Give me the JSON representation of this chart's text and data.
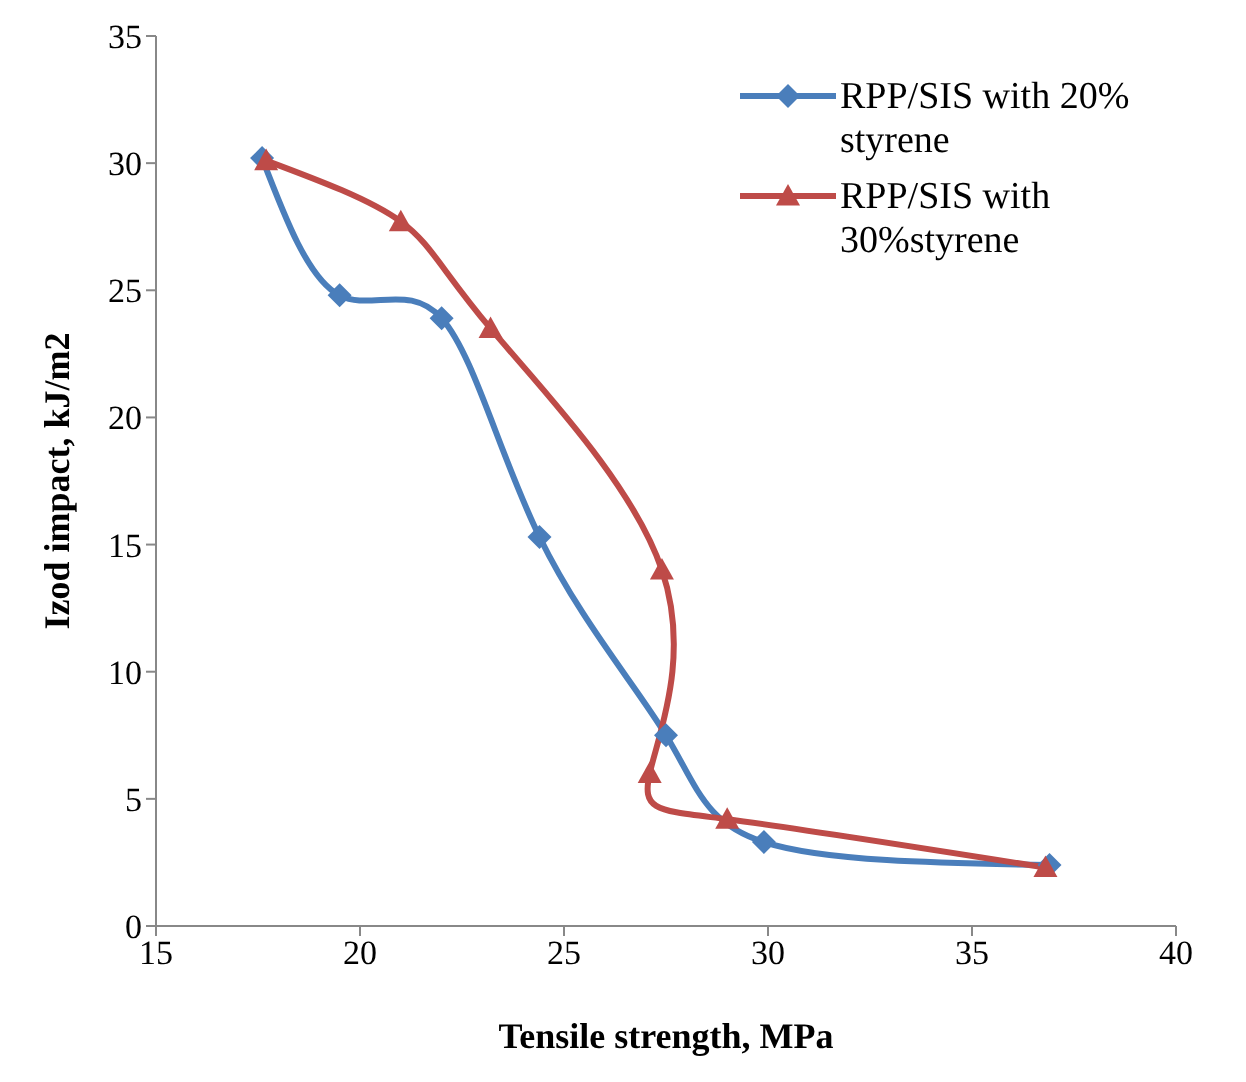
{
  "chart_data": {
    "type": "line",
    "xlabel": "Tensile strength, MPa",
    "ylabel": "Izod impact, kJ/m2",
    "xlim": [
      15,
      40
    ],
    "xticks": [
      15,
      20,
      25,
      30,
      35,
      40
    ],
    "ylim": [
      0,
      35
    ],
    "yticks": [
      0,
      5,
      10,
      15,
      20,
      25,
      30,
      35
    ],
    "legend": "top right",
    "series": [
      {
        "name": "RPP/SIS with 20% styrene",
        "color": "#4a7ebb",
        "marker": "diamond",
        "x": [
          17.6,
          19.5,
          22.0,
          24.4,
          27.5,
          29.9,
          36.9
        ],
        "values": [
          30.2,
          24.8,
          23.9,
          15.3,
          7.5,
          3.3,
          2.4
        ]
      },
      {
        "name": "RPP/SIS with 30%styrene",
        "color": "#be4b48",
        "marker": "triangle",
        "x": [
          17.7,
          21.0,
          23.2,
          27.4,
          27.1,
          29.0,
          36.8
        ],
        "values": [
          30.1,
          27.7,
          23.5,
          14.0,
          6.0,
          4.2,
          2.3
        ]
      }
    ]
  }
}
